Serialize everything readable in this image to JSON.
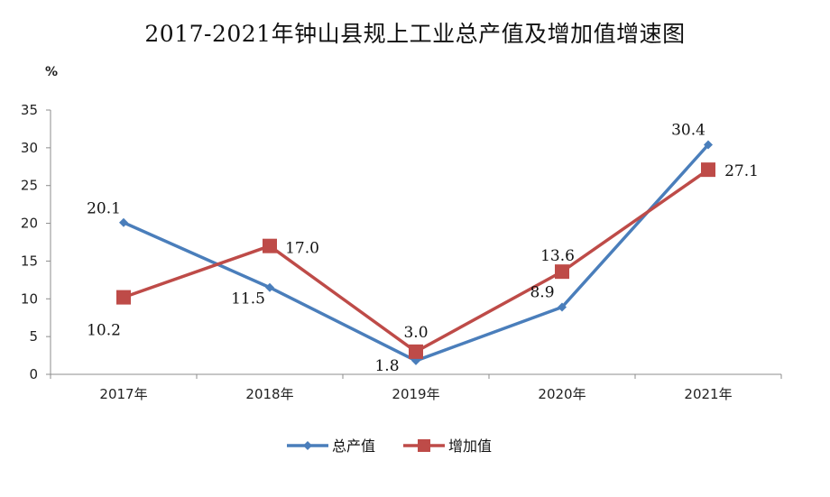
{
  "chart_data": {
    "type": "line",
    "title": "2017-2021年钟山县规上工业总产值及增加值增速图",
    "ylabel": "%",
    "xlabel": "",
    "categories": [
      "2017年",
      "2018年",
      "2019年",
      "2020年",
      "2021年"
    ],
    "ylim": [
      0,
      35
    ],
    "yticks": [
      0,
      5,
      10,
      15,
      20,
      25,
      30,
      35
    ],
    "grid": false,
    "legend": "bottom",
    "series": [
      {
        "name": "总产值",
        "values": [
          20.1,
          11.5,
          1.8,
          8.9,
          30.4
        ],
        "labels": [
          "20.1",
          "11.5",
          "1.8",
          "8.9",
          "30.4"
        ],
        "color": "#4a7ebb",
        "marker": "diamond"
      },
      {
        "name": "增加值",
        "values": [
          10.2,
          17.0,
          3.0,
          13.6,
          27.1
        ],
        "labels": [
          "10.2",
          "17.0",
          "3.0",
          "13.6",
          "27.1"
        ],
        "color": "#be4b48",
        "marker": "square"
      }
    ]
  }
}
